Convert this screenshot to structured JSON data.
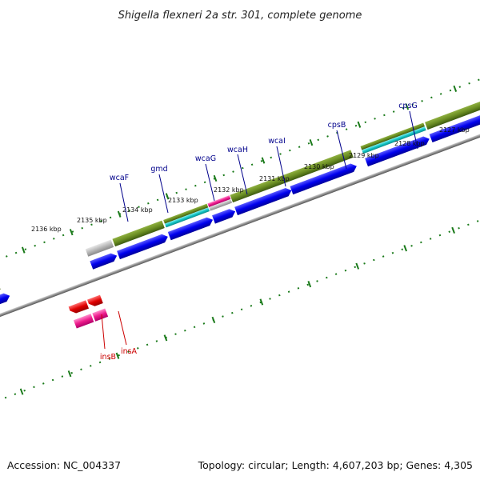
{
  "title": "Shigella flexneri 2a str. 301, complete genome",
  "footer": {
    "accession": "Accession: NC_004337",
    "summary": "Topology: circular; Length: 4,607,203 bp; Genes: 4,305"
  },
  "colors": {
    "background": "#ffffff",
    "backbone": "#8c8c8c",
    "tick": "#1a7a1a",
    "forward_cds": "#0000ee",
    "feature_olive": "#6b8e23",
    "feature_teal": "#12c4c4",
    "feature_magenta": "#ee1c8c",
    "feature_grey": "#b8b8b8",
    "reverse_gene": "#e00000",
    "forward_label": "#00008b",
    "reverse_label": "#cc0000"
  },
  "kbp_labels": [
    "2127 kbp",
    "2128 kbp",
    "2129 kbp",
    "2130 kbp",
    "2131 kbp",
    "2132 kbp",
    "2133 kbp",
    "2134 kbp",
    "2135 kbp",
    "2136 kbp"
  ],
  "forward_genes": [
    "cpsG",
    "cpsB",
    "wcaI",
    "wcaH",
    "wcaG",
    "gmd",
    "wcaF"
  ],
  "reverse_genes": [
    "insB",
    "insA"
  ]
}
